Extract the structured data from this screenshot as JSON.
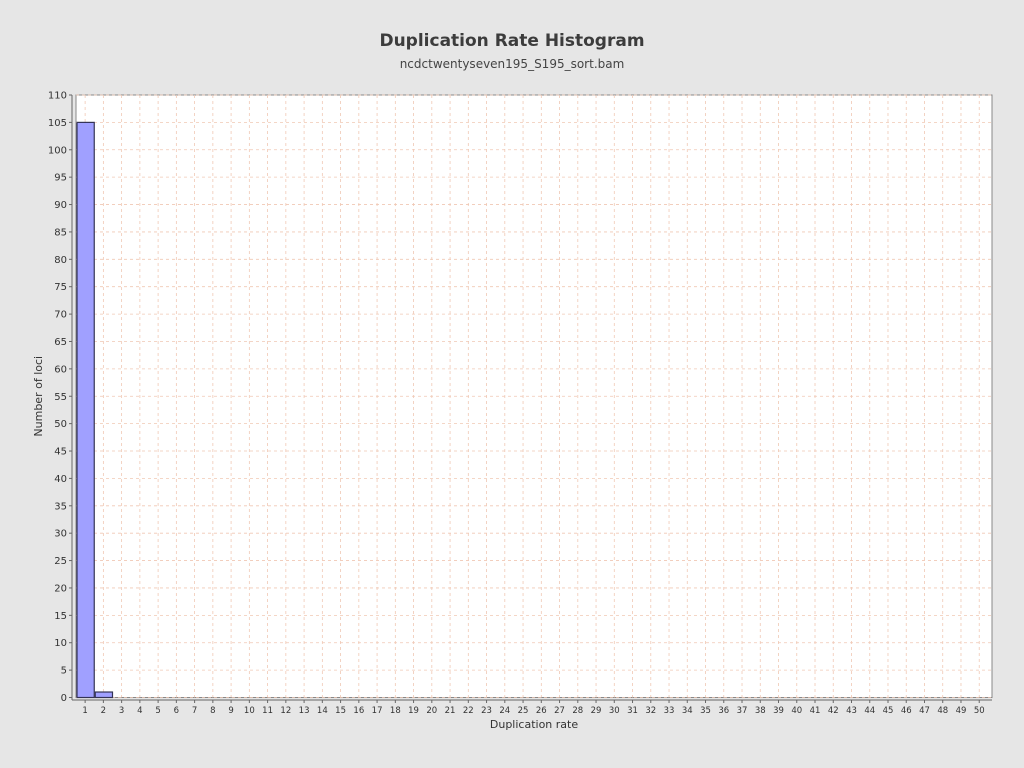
{
  "chart_data": {
    "type": "bar",
    "title": "Duplication Rate Histogram",
    "subtitle": "ncdctwentyseven195_S195_sort.bam",
    "xlabel": "Duplication rate",
    "ylabel": "Number of loci",
    "ylim": [
      0,
      110
    ],
    "ytick_step": 5,
    "x_categories": [
      1,
      2,
      3,
      4,
      5,
      6,
      7,
      8,
      9,
      10,
      11,
      12,
      13,
      14,
      15,
      16,
      17,
      18,
      19,
      20,
      21,
      22,
      23,
      24,
      25,
      26,
      27,
      28,
      29,
      30,
      31,
      32,
      33,
      34,
      35,
      36,
      37,
      38,
      39,
      40,
      41,
      42,
      43,
      44,
      45,
      46,
      47,
      48,
      49,
      50
    ],
    "bars": [
      {
        "x": 1,
        "value": 105
      },
      {
        "x": 2,
        "value": 1
      }
    ],
    "grid": true,
    "legend": "none",
    "colors": {
      "bar_fill": "#a0a0ff",
      "bar_stroke": "#333355",
      "grid": "#f0c8b4",
      "background": "#e6e6e6",
      "plot_background": "#ffffff"
    }
  }
}
